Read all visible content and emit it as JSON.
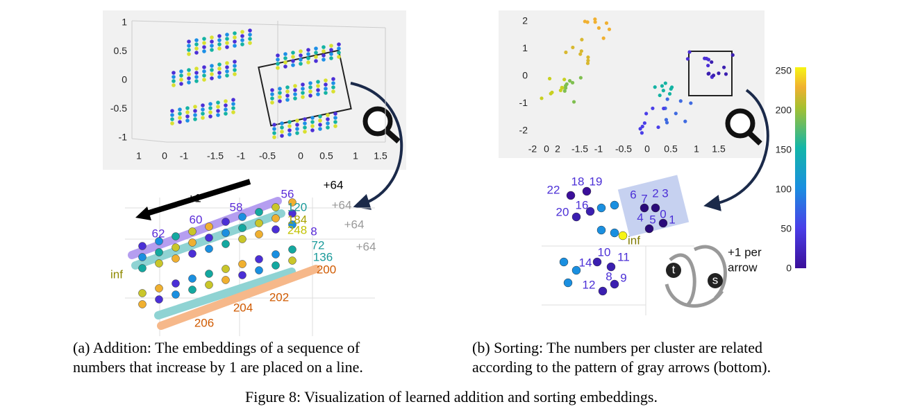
{
  "panel_a": {
    "z_ticks": [
      "1",
      "0.5",
      "0",
      "-0.5",
      "-1"
    ],
    "x_ticks": [
      "1",
      "0",
      "-1",
      "-1.5",
      "-1",
      "-0.5",
      "0",
      "0.5",
      "1",
      "1.5"
    ],
    "zoom_labels": [
      "+1",
      "56",
      "58",
      "60",
      "62",
      "+64",
      "120",
      "+64",
      "184",
      "248",
      "+64",
      "8",
      "72",
      "+64",
      "136",
      "200",
      "inf",
      "202",
      "204",
      "206"
    ]
  },
  "panel_b": {
    "y_ticks": [
      "2",
      "1",
      "0",
      "-1",
      "-2"
    ],
    "x_ticks": [
      "-2",
      "0",
      "2",
      "-1.5",
      "-1",
      "-0.5",
      "0",
      "0.5",
      "1",
      "1.5"
    ],
    "colorbar_ticks": [
      "250",
      "200",
      "150",
      "100",
      "50",
      "0"
    ],
    "zoom_labels": [
      "22",
      "18",
      "19",
      "20",
      "16",
      "6",
      "7",
      "2",
      "3",
      "4",
      "5",
      "0",
      "1",
      "inf",
      "10",
      "14",
      "11",
      "12",
      "8",
      "9",
      "t",
      "s"
    ],
    "arrow_note": [
      "+1 per",
      "arrow"
    ]
  },
  "captions": {
    "a": [
      "(a) Addition: The embeddings of a sequence of",
      "numbers that increase by 1 are placed on a line."
    ],
    "b": [
      "(b) Sorting: The numbers per cluster are related",
      "according to the pattern of gray arrows (bottom)."
    ],
    "figure": "Figure 8: Visualization of learned addition and sorting embeddings."
  }
}
